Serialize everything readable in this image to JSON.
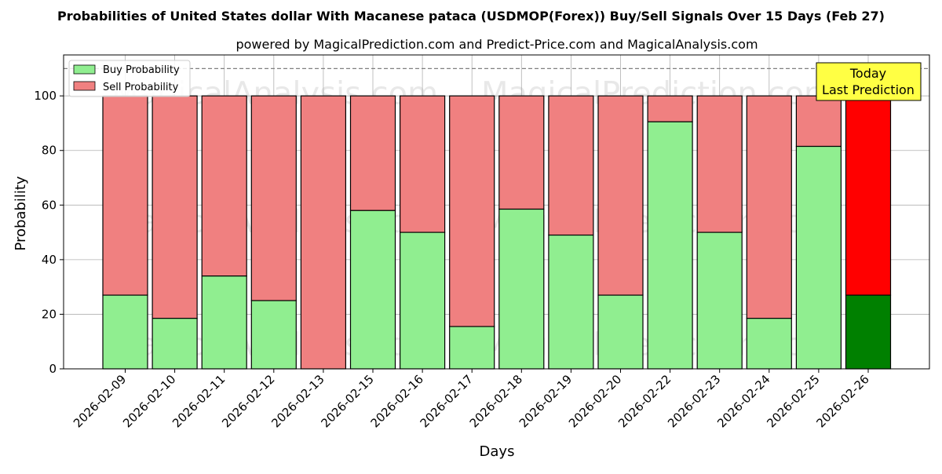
{
  "chart_data": {
    "type": "bar",
    "stacked": true,
    "title": "Probabilities of United States dollar With Macanese pataca (USDMOP(Forex)) Buy/Sell Signals Over 15 Days (Feb 27)",
    "subtitle": "powered by MagicalPrediction.com and Predict-Price.com and MagicalAnalysis.com",
    "xlabel": "Days",
    "ylabel": "Probability",
    "ylim": [
      0,
      115
    ],
    "yticks": [
      0,
      20,
      40,
      60,
      80,
      100
    ],
    "grid": true,
    "legend_position": "top-left",
    "reference_line": 110,
    "categories": [
      "2026-02-09",
      "2026-02-10",
      "2026-02-11",
      "2026-02-12",
      "2026-02-13",
      "2026-02-15",
      "2026-02-16",
      "2026-02-17",
      "2026-02-18",
      "2026-02-19",
      "2026-02-20",
      "2026-02-22",
      "2026-02-23",
      "2026-02-24",
      "2026-02-25",
      "2026-02-26"
    ],
    "series": [
      {
        "name": "Buy Probability",
        "color": "#90ee90",
        "values": [
          27,
          18.5,
          34,
          25,
          0,
          58,
          50,
          15.5,
          58.5,
          49,
          27,
          90.5,
          50,
          18.5,
          81.5,
          27
        ]
      },
      {
        "name": "Sell Probability",
        "color": "#f08080",
        "values": [
          73,
          81.5,
          66,
          75,
          100,
          42,
          50,
          84.5,
          41.5,
          51,
          73,
          9.5,
          50,
          81.5,
          18.5,
          73
        ]
      }
    ],
    "highlight": {
      "index": 15,
      "buy_color": "#008000",
      "sell_color": "#ff0000",
      "label_line1": "Today",
      "label_line2": "Last Prediction",
      "label_bg": "#ffff44"
    },
    "watermarks": [
      "MagicalAnalysis.com",
      "MagicalPrediction.com"
    ]
  }
}
